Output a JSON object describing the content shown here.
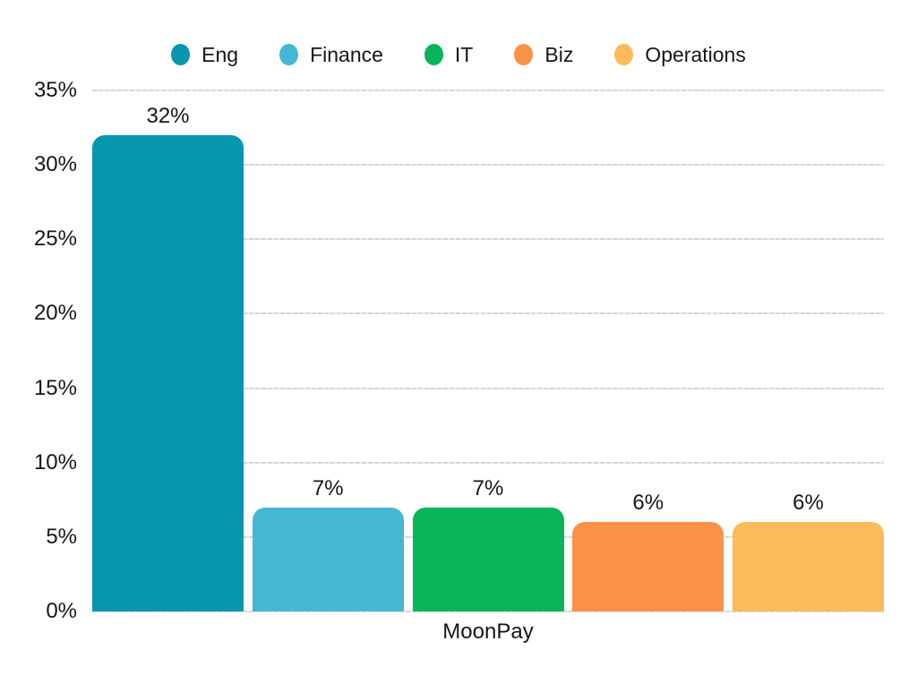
{
  "chart_data": {
    "type": "bar",
    "categories": [
      "MoonPay"
    ],
    "series": [
      {
        "name": "Eng",
        "color": "#0895AE",
        "values": [
          32
        ],
        "value_label": "32%"
      },
      {
        "name": "Finance",
        "color": "#45B7D5",
        "values": [
          7
        ],
        "value_label": "7%"
      },
      {
        "name": "IT",
        "color": "#09B45A",
        "values": [
          7
        ],
        "value_label": "7%"
      },
      {
        "name": "Biz",
        "color": "#FB9147",
        "values": [
          6
        ],
        "value_label": "6%"
      },
      {
        "name": "Operations",
        "color": "#FBBB5B",
        "values": [
          6
        ],
        "value_label": "6%"
      }
    ],
    "title": "",
    "xlabel": "MoonPay",
    "ylabel": "",
    "ylim": [
      0,
      35
    ],
    "yticks": [
      0,
      5,
      10,
      15,
      20,
      25,
      30,
      35
    ],
    "ytick_labels": [
      "0%",
      "5%",
      "10%",
      "15%",
      "20%",
      "25%",
      "30%",
      "35%"
    ],
    "grid": true,
    "legend_position": "top",
    "text_color": "#161616",
    "grid_color": "#d9d9d9",
    "background_color": "#ffffff"
  }
}
